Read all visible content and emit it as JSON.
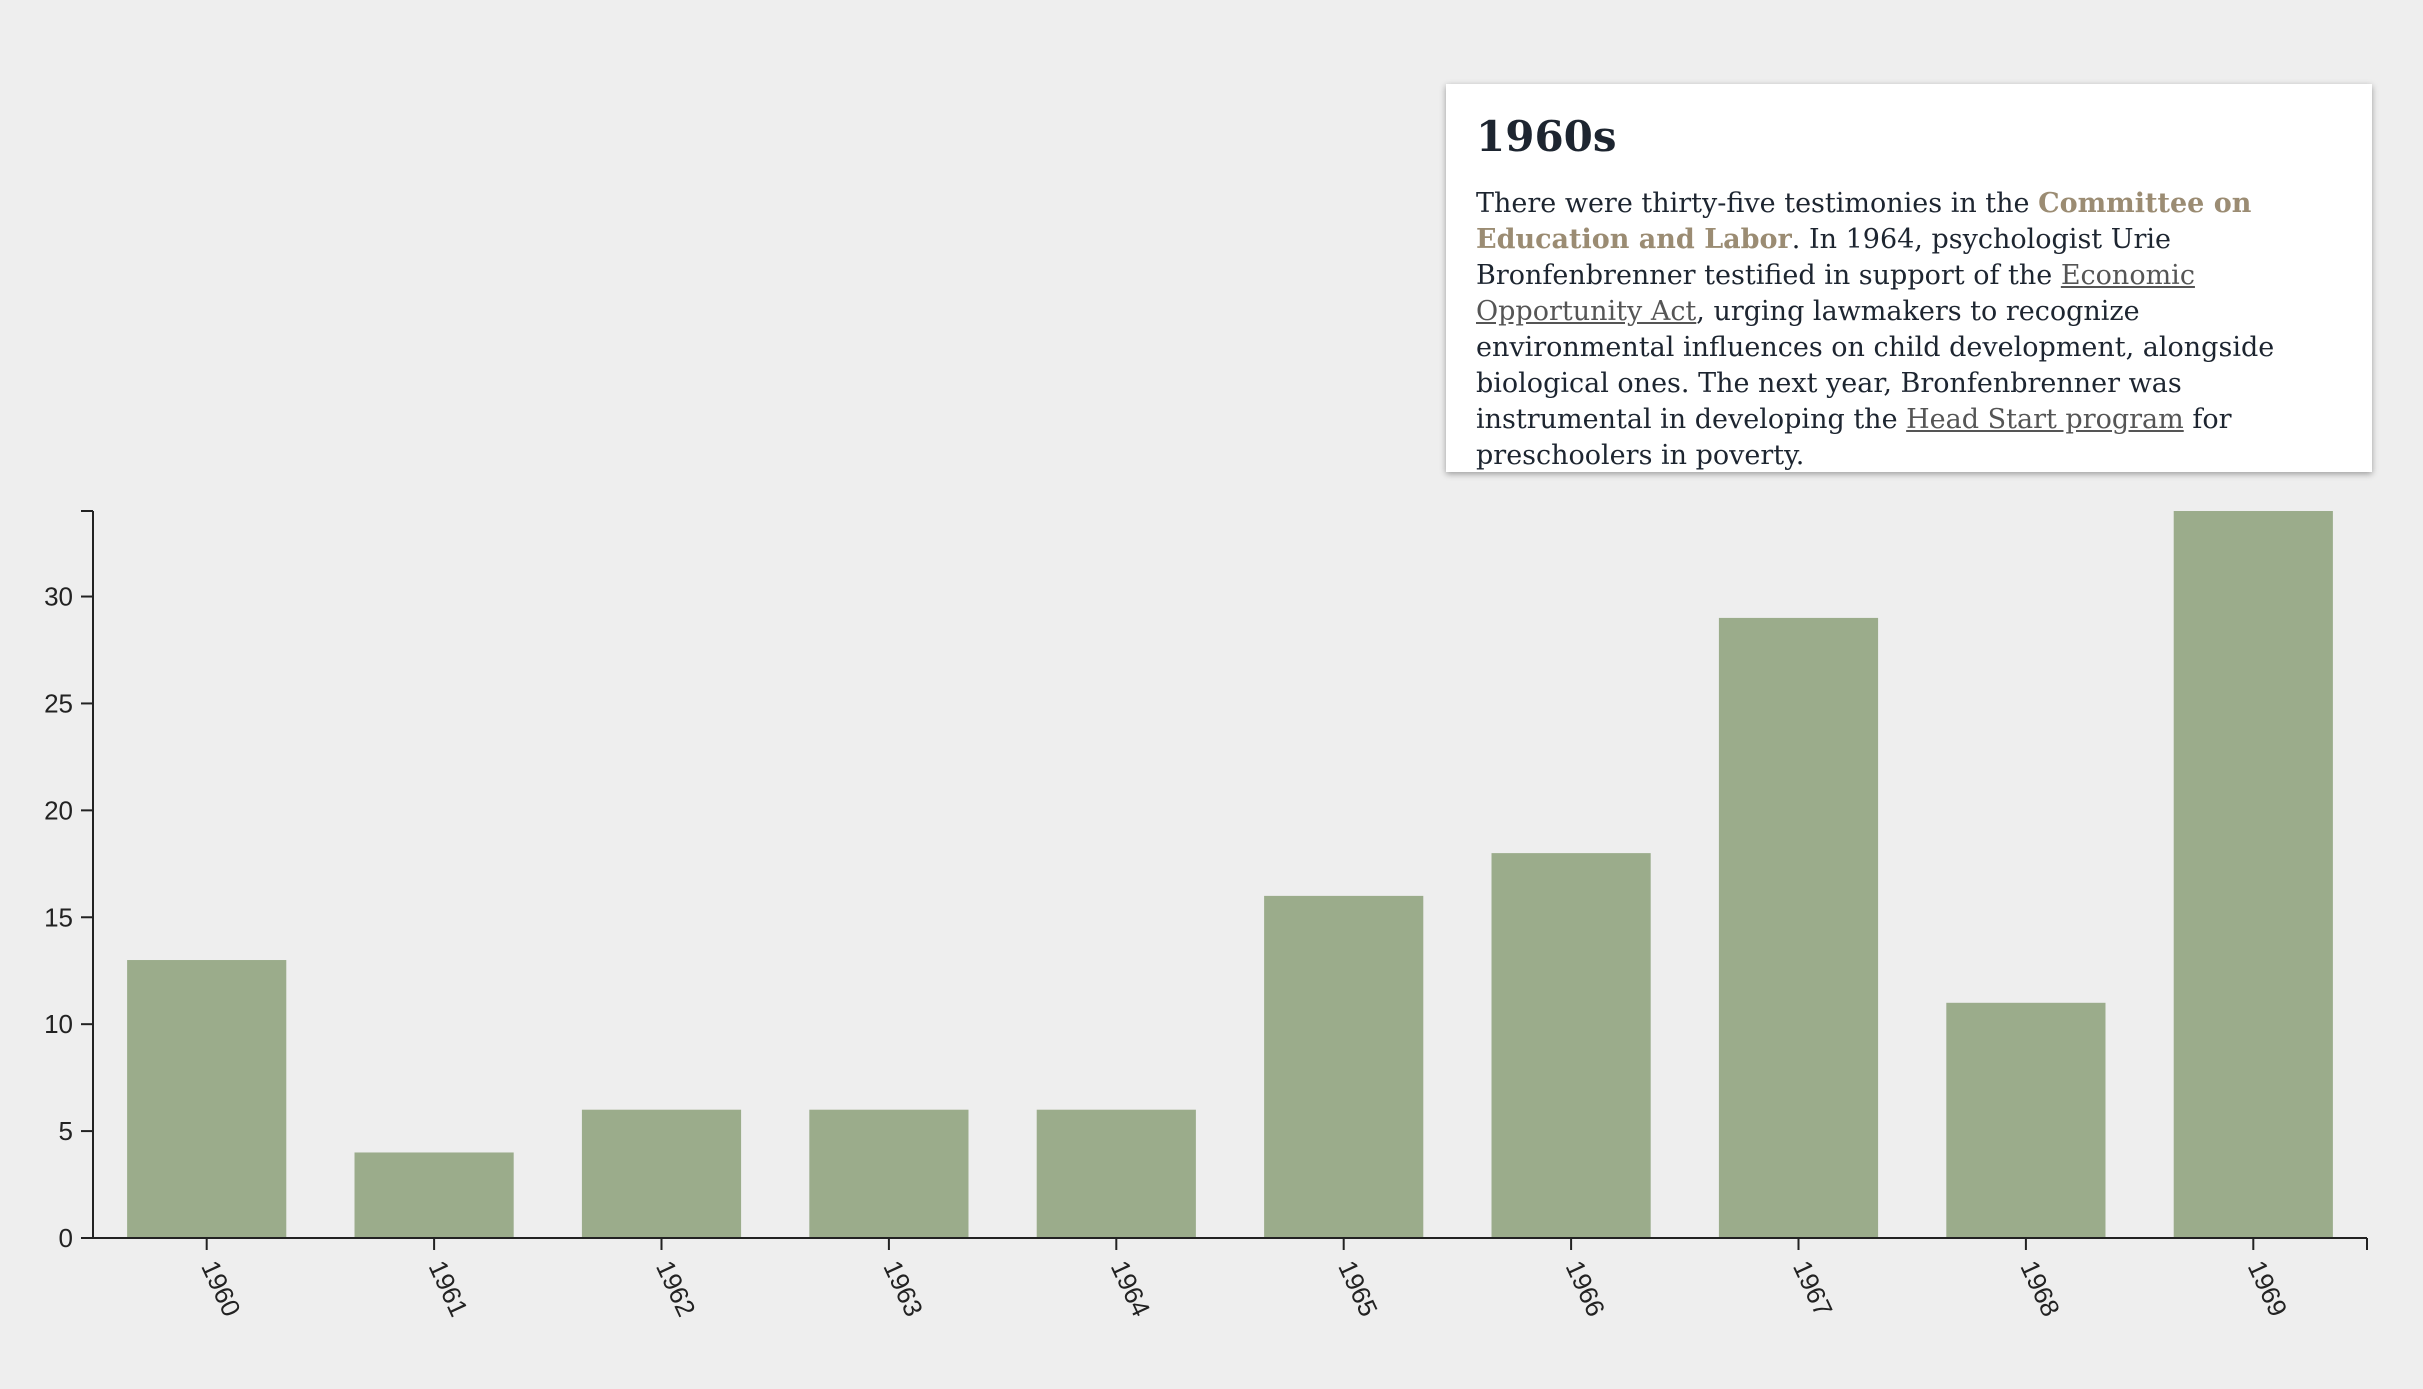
{
  "chart_data": {
    "type": "bar",
    "categories": [
      "1960",
      "1961",
      "1962",
      "1963",
      "1964",
      "1965",
      "1966",
      "1967",
      "1968",
      "1969"
    ],
    "values": [
      13,
      4,
      6,
      6,
      6,
      16,
      18,
      29,
      11,
      34
    ],
    "ylim": [
      0,
      34
    ],
    "yticks": [
      0,
      5,
      10,
      15,
      20,
      25,
      30
    ],
    "bar_color": "#9bac8b",
    "axis_color": "#222222",
    "grid": false,
    "xlabel": "",
    "ylabel": ""
  },
  "info_card": {
    "title": "1960s",
    "text_1": "There were thirty-five testimonies in the ",
    "committee": "Committee on Education and Labor",
    "text_2": ". In 1964, psychologist Urie Bronfenbrenner testified in support of the ",
    "link_act": "Economic Opportunity Act",
    "text_3": ", urging lawmakers to recognize environmental influences on child development, alongside biological ones. The next year, Bronfenbrenner was instrumental in developing the ",
    "link_head_start": "Head Start program",
    "text_4": " for preschoolers in poverty."
  }
}
